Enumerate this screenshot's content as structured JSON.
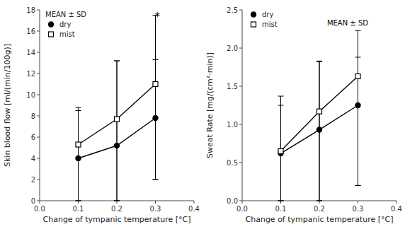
{
  "chart_data": [
    {
      "type": "line",
      "xlabel": "Change of tympanic temperature [°C]",
      "ylabel": "Skin blood flow [ml/(min/100g)]",
      "x": [
        0.1,
        0.2,
        0.3
      ],
      "series": [
        {
          "name": "dry",
          "color": "#000000",
          "marker": "circle",
          "values": [
            4.0,
            5.2,
            7.8
          ],
          "error_low": [
            4.0,
            5.2,
            5.8
          ],
          "error_high": [
            4.5,
            8.0,
            5.5
          ]
        },
        {
          "name": "mist",
          "color": "#000000",
          "marker": "square-open",
          "values": [
            5.3,
            7.7,
            11.0
          ],
          "error_low": [
            5.3,
            7.7,
            9.0
          ],
          "error_high": [
            3.5,
            5.5,
            6.5
          ]
        }
      ],
      "xlim": [
        0,
        0.4
      ],
      "xticks": [
        {
          "value": 0,
          "label": "0.0"
        },
        0.1,
        0.2,
        0.3,
        0.4
      ],
      "ylim": [
        0,
        18
      ],
      "yticks": [
        0,
        2,
        4,
        6,
        8,
        10,
        12,
        14,
        16,
        18
      ],
      "legend": "upper left",
      "grid": false,
      "annotations": [
        {
          "text": "MEAN ± SD"
        },
        {
          "text": "*",
          "x": 0.305,
          "y": 17.0
        }
      ]
    },
    {
      "type": "line",
      "xlabel": "Change of tympanic temperature [°C]",
      "ylabel": "Sweat Rate [mg/(cm²·min)]",
      "x": [
        0.1,
        0.2,
        0.3
      ],
      "series": [
        {
          "name": "dry",
          "color": "#000000",
          "marker": "circle",
          "values": [
            0.62,
            0.93,
            1.25
          ],
          "error_low": [
            0.62,
            0.93,
            1.05
          ],
          "error_high": [
            0.75,
            0.9,
            0.98
          ]
        },
        {
          "name": "mist",
          "color": "#000000",
          "marker": "square-open",
          "values": [
            0.65,
            1.17,
            1.63
          ],
          "error_low": [
            0.65,
            1.17,
            1.43
          ],
          "error_high": [
            0.6,
            0.65,
            0.25
          ]
        }
      ],
      "xlim": [
        0,
        0.4
      ],
      "xticks": [
        {
          "value": 0,
          "label": "0.0"
        },
        0.1,
        0.2,
        0.3,
        0.4
      ],
      "ylim": [
        0,
        2.5
      ],
      "yticks": [
        {
          "value": 0,
          "label": "0.0"
        },
        0.5,
        {
          "value": 1.0,
          "label": "1.0"
        },
        1.5,
        {
          "value": 2.0,
          "label": "2.0"
        },
        2.5
      ],
      "legend": "upper left",
      "grid": false,
      "annotations": [
        {
          "text": "MEAN ± SD",
          "x": 0.22,
          "y": 2.38
        }
      ]
    }
  ]
}
